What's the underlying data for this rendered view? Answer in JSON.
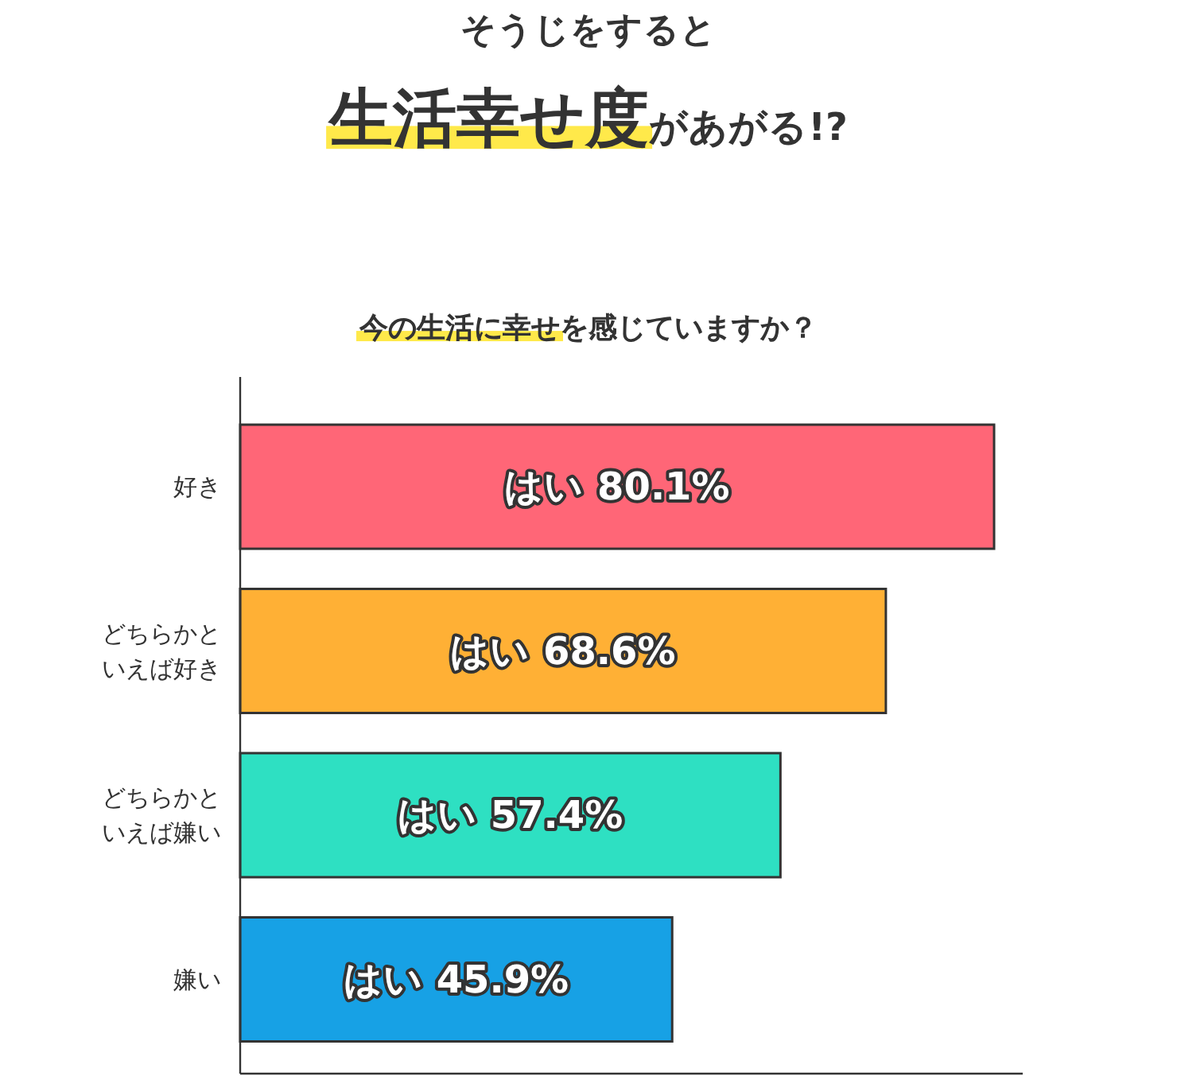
{
  "chart_data": {
    "type": "bar",
    "orientation": "horizontal",
    "title": "そうじをすると",
    "subtitle": "**生活幸せ度**があがる!?",
    "annotations": [
      "**今の生活に幸せ**を感じていますか？"
    ],
    "categories": [
      "好き",
      "どちらかといえば好き",
      "どちらかといえば嫌い",
      "嫌い"
    ],
    "values": [
      80.1,
      68.6,
      57.4,
      45.9
    ],
    "colors": [
      "#ff6677",
      "#ffb035",
      "#2ee0c2",
      "#17a1e5"
    ],
    "value_labels": [
      "はい 80.1%",
      "はい 68.6%",
      "はい 57.4%",
      "はい 45.9%"
    ]
  }
}
